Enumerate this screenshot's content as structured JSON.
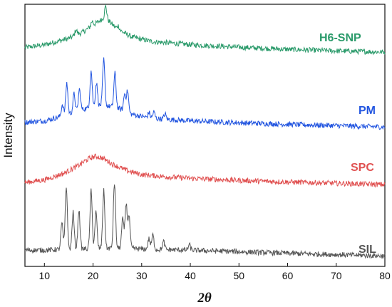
{
  "chart_data": {
    "type": "line",
    "xlabel": "2θ",
    "ylabel": "Intensity",
    "xlim": [
      6,
      80
    ],
    "xticks": [
      "10",
      "20",
      "30",
      "40",
      "50",
      "60",
      "70",
      "80"
    ],
    "grid": false,
    "y_ticks_shown": false,
    "series": [
      {
        "name": "H6-SNP",
        "color": "#2a9a6a",
        "baseline_points": [
          [
            6,
            0.835
          ],
          [
            10,
            0.845
          ],
          [
            15,
            0.87
          ],
          [
            18,
            0.895
          ],
          [
            20,
            0.92
          ],
          [
            22,
            0.945
          ],
          [
            23,
            0.94
          ],
          [
            25,
            0.905
          ],
          [
            28,
            0.875
          ],
          [
            32,
            0.858
          ],
          [
            40,
            0.846
          ],
          [
            50,
            0.836
          ],
          [
            60,
            0.828
          ],
          [
            70,
            0.822
          ],
          [
            80,
            0.818
          ]
        ],
        "peaks": [
          [
            16.5,
            0.02
          ],
          [
            19.8,
            0.018
          ],
          [
            22.6,
            0.05
          ],
          [
            25.2,
            0.015
          ]
        ]
      },
      {
        "name": "PM",
        "color": "#2255e0",
        "baseline_points": [
          [
            6,
            0.55
          ],
          [
            10,
            0.555
          ],
          [
            14,
            0.575
          ],
          [
            18,
            0.6
          ],
          [
            22,
            0.615
          ],
          [
            25,
            0.605
          ],
          [
            28,
            0.58
          ],
          [
            32,
            0.565
          ],
          [
            40,
            0.555
          ],
          [
            50,
            0.548
          ],
          [
            60,
            0.542
          ],
          [
            70,
            0.537
          ],
          [
            80,
            0.532
          ]
        ],
        "peaks": [
          [
            13.7,
            0.045
          ],
          [
            14.6,
            0.12
          ],
          [
            16.1,
            0.07
          ],
          [
            17.2,
            0.08
          ],
          [
            19.6,
            0.14
          ],
          [
            20.7,
            0.09
          ],
          [
            22.2,
            0.175
          ],
          [
            24.5,
            0.13
          ],
          [
            26.5,
            0.065
          ],
          [
            27.1,
            0.08
          ],
          [
            31.5,
            0.02
          ],
          [
            32.5,
            0.025
          ],
          [
            34.8,
            0.02
          ]
        ]
      },
      {
        "name": "SPC",
        "color": "#e05050",
        "baseline_points": [
          [
            6,
            0.32
          ],
          [
            10,
            0.33
          ],
          [
            14,
            0.355
          ],
          [
            17,
            0.385
          ],
          [
            19,
            0.41
          ],
          [
            20.5,
            0.42
          ],
          [
            22,
            0.413
          ],
          [
            24,
            0.39
          ],
          [
            27,
            0.365
          ],
          [
            30,
            0.35
          ],
          [
            35,
            0.342
          ],
          [
            40,
            0.336
          ],
          [
            50,
            0.328
          ],
          [
            60,
            0.322
          ],
          [
            70,
            0.317
          ],
          [
            80,
            0.312
          ]
        ],
        "peaks": []
      },
      {
        "name": "SIL",
        "color": "#555555",
        "baseline_points": [
          [
            6,
            0.062
          ],
          [
            10,
            0.062
          ],
          [
            14,
            0.065
          ],
          [
            20,
            0.068
          ],
          [
            26,
            0.07
          ],
          [
            30,
            0.066
          ],
          [
            40,
            0.062
          ],
          [
            50,
            0.056
          ],
          [
            60,
            0.05
          ],
          [
            70,
            0.045
          ],
          [
            80,
            0.04
          ]
        ],
        "peaks": [
          [
            13.6,
            0.1
          ],
          [
            14.5,
            0.24
          ],
          [
            15.9,
            0.14
          ],
          [
            17.1,
            0.15
          ],
          [
            19.6,
            0.22
          ],
          [
            20.6,
            0.14
          ],
          [
            22.2,
            0.22
          ],
          [
            24.4,
            0.25
          ],
          [
            26.1,
            0.11
          ],
          [
            26.8,
            0.17
          ],
          [
            27.4,
            0.12
          ],
          [
            31.5,
            0.04
          ],
          [
            32.3,
            0.055
          ],
          [
            34.5,
            0.03
          ],
          [
            39.8,
            0.02
          ]
        ]
      }
    ]
  }
}
